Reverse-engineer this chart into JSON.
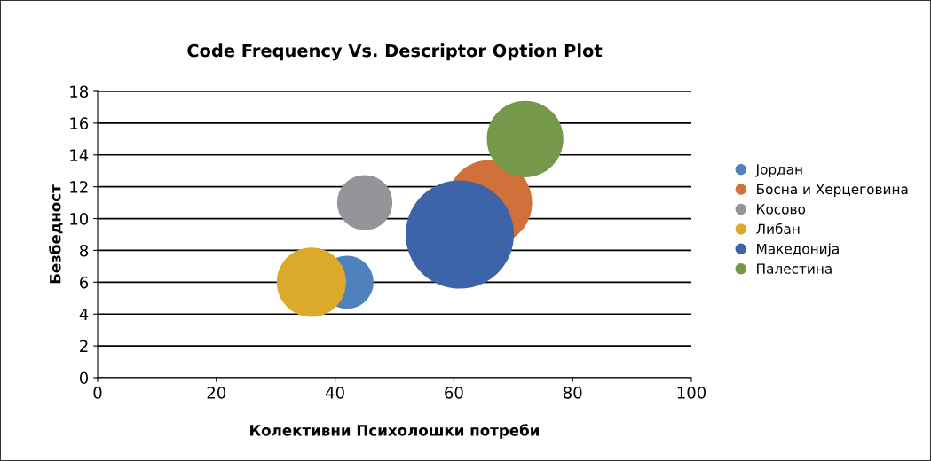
{
  "chart_data": {
    "type": "bubble",
    "title": "Code Frequency Vs. Descriptor Option Plot",
    "xlabel": "Колективни Психолошки потреби",
    "ylabel": "Безбедност",
    "xlim": [
      0,
      100
    ],
    "xticks": [
      0,
      20,
      40,
      60,
      80,
      100
    ],
    "ylim": [
      0,
      18
    ],
    "yticks": [
      0,
      2,
      4,
      6,
      8,
      10,
      12,
      14,
      16,
      18
    ],
    "grid": "y",
    "legend": "right",
    "marker": "circle",
    "series": [
      {
        "name": "Јордан",
        "color": "#4f81bd",
        "x": [
          42
        ],
        "values": [
          6
        ],
        "sizes": [
          0.24
        ]
      },
      {
        "name": "Босна и Херцеговина",
        "color": "#d0703a",
        "x": [
          66
        ],
        "values": [
          11
        ],
        "sizes": [
          0.62
        ]
      },
      {
        "name": "Косово",
        "color": "#939598",
        "x": [
          45
        ],
        "values": [
          11
        ],
        "sizes": [
          0.26
        ]
      },
      {
        "name": "Либан",
        "color": "#dcaa2a",
        "x": [
          36
        ],
        "values": [
          6
        ],
        "sizes": [
          0.41
        ]
      },
      {
        "name": "Македонија",
        "color": "#3d64a8",
        "x": [
          61
        ],
        "values": [
          9
        ],
        "sizes": [
          1
        ]
      },
      {
        "name": "Палестина",
        "color": "#76984a",
        "x": [
          72
        ],
        "values": [
          15
        ],
        "sizes": [
          0.5
        ]
      }
    ]
  }
}
